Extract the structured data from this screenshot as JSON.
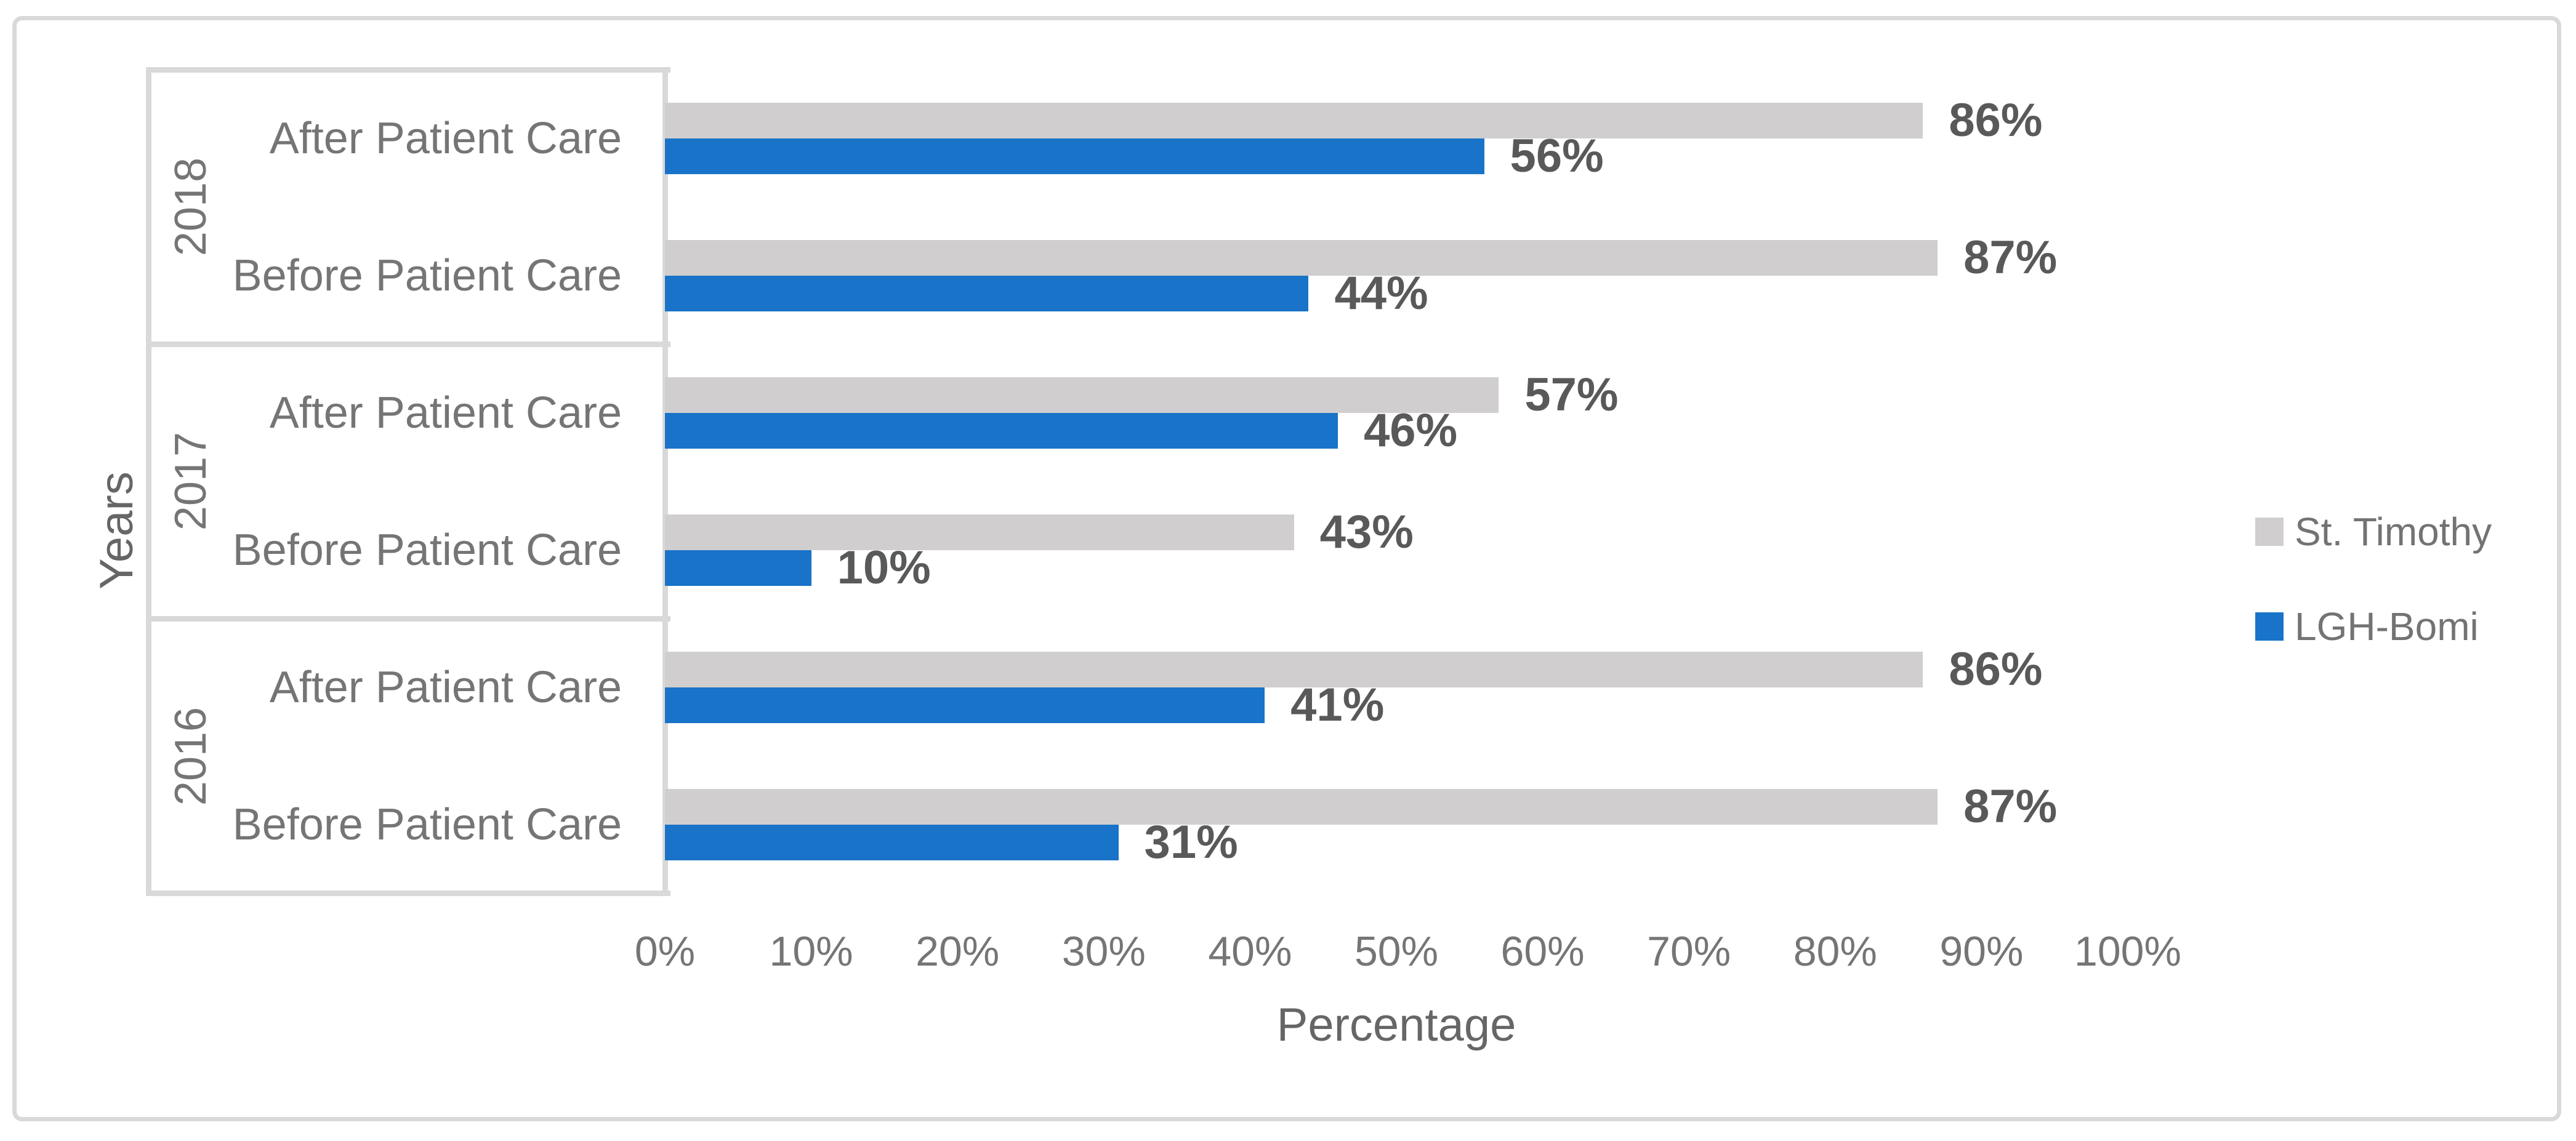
{
  "chart_data": {
    "type": "bar",
    "orientation": "horizontal",
    "xlabel": "Percentage",
    "ylabel": "Years",
    "xlim": [
      0,
      100
    ],
    "grid": false,
    "legend_position": "right",
    "x_ticks": [
      "0%",
      "10%",
      "20%",
      "30%",
      "40%",
      "50%",
      "60%",
      "70%",
      "80%",
      "90%",
      "100%"
    ],
    "series": [
      {
        "name": "St. Timothy",
        "color": "#d0cece"
      },
      {
        "name": "LGH-Bomi",
        "color": "#1973c8"
      }
    ],
    "groups": [
      {
        "year": "2018",
        "rows": [
          {
            "label": "After Patient Care",
            "st_timothy": 86,
            "st_timothy_label": "86%",
            "lgh_bomi": 56,
            "lgh_bomi_label": "56%"
          },
          {
            "label": "Before Patient Care",
            "st_timothy": 87,
            "st_timothy_label": "87%",
            "lgh_bomi": 44,
            "lgh_bomi_label": "44%"
          }
        ]
      },
      {
        "year": "2017",
        "rows": [
          {
            "label": "After Patient Care",
            "st_timothy": 57,
            "st_timothy_label": "57%",
            "lgh_bomi": 46,
            "lgh_bomi_label": "46%"
          },
          {
            "label": "Before Patient Care",
            "st_timothy": 43,
            "st_timothy_label": "43%",
            "lgh_bomi": 10,
            "lgh_bomi_label": "10%"
          }
        ]
      },
      {
        "year": "2016",
        "rows": [
          {
            "label": "After Patient Care",
            "st_timothy": 86,
            "st_timothy_label": "86%",
            "lgh_bomi": 41,
            "lgh_bomi_label": "41%"
          },
          {
            "label": "Before Patient Care",
            "st_timothy": 87,
            "st_timothy_label": "87%",
            "lgh_bomi": 31,
            "lgh_bomi_label": "31%"
          }
        ]
      }
    ]
  },
  "legend": {
    "items": [
      {
        "label": "St. Timothy",
        "color": "#d0cece"
      },
      {
        "label": "LGH-Bomi",
        "color": "#1973c8"
      }
    ]
  },
  "axis_titles": {
    "x": "Percentage",
    "y": "Years"
  },
  "colors": {
    "st_timothy_bar": "#d0cece",
    "lgh_bomi_bar": "#1973c8",
    "axis_line": "#d9d9d9",
    "frame_border": "#d9d9d9",
    "axis_text": "#757575",
    "data_label_text": "#595959",
    "background": "#ffffff"
  }
}
